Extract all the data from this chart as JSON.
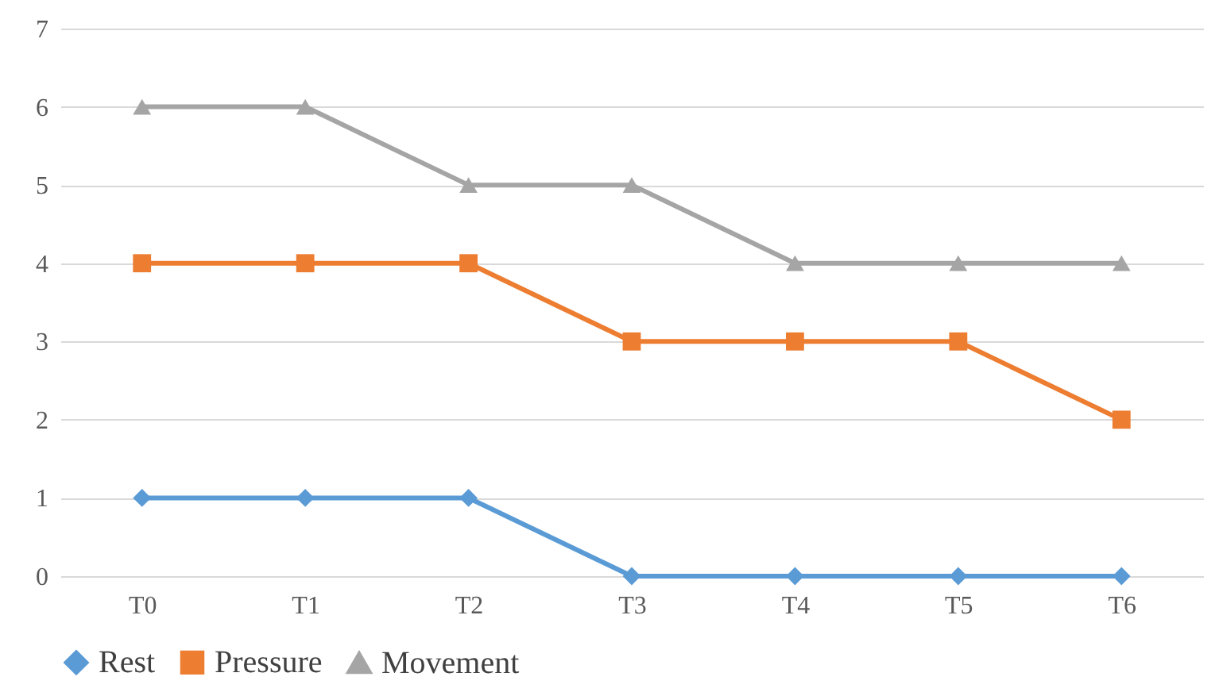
{
  "chart_data": {
    "type": "line",
    "categories": [
      "T0",
      "T1",
      "T2",
      "T3",
      "T4",
      "T5",
      "T6"
    ],
    "series": [
      {
        "name": "Rest",
        "color": "#5b9bd5",
        "marker": "diamond",
        "values": [
          1,
          1,
          1,
          0,
          0,
          0,
          0
        ]
      },
      {
        "name": "Pressure",
        "color": "#ed7d31",
        "marker": "square",
        "values": [
          4,
          4,
          4,
          3,
          3,
          3,
          2
        ]
      },
      {
        "name": "Movement",
        "color": "#a5a5a5",
        "marker": "triangle",
        "values": [
          6,
          6,
          5,
          5,
          4,
          4,
          4
        ]
      }
    ],
    "ylim": [
      0,
      7
    ],
    "yticks": [
      0,
      1,
      2,
      3,
      4,
      5,
      6,
      7
    ],
    "grid": "y",
    "legend": "bottom",
    "line_style": "solid"
  }
}
